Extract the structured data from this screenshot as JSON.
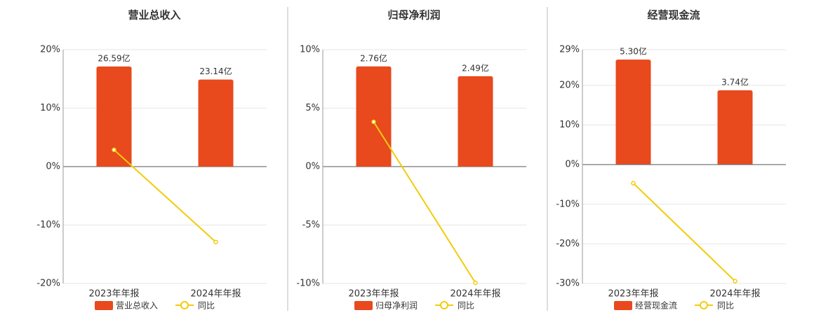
{
  "chart_data": [
    {
      "type": "bar",
      "title": "营业总收入",
      "categories": [
        "2023年年报",
        "2024年年报"
      ],
      "ylim": [
        -20,
        20
      ],
      "yticks": [
        {
          "value": -20,
          "label": "-20%"
        },
        {
          "value": -10,
          "label": "-10%"
        },
        {
          "value": 0,
          "label": "0%"
        },
        {
          "value": 10,
          "label": "10%"
        },
        {
          "value": 20,
          "label": "20%"
        }
      ],
      "y2lim": [
        -31.06,
        31.06
      ],
      "grid": true,
      "series": [
        {
          "name": "营业总收入",
          "color": "#e8491d",
          "axis": "y2",
          "values": [
            26.59,
            23.14
          ],
          "value_labels": [
            "26.59亿",
            "23.14亿"
          ]
        },
        {
          "name": "同比",
          "color": "#f2cc0c",
          "type": "line",
          "values": [
            2.87,
            -12.9
          ]
        }
      ]
    },
    {
      "type": "bar",
      "title": "归母净利润",
      "categories": [
        "2023年年报",
        "2024年年报"
      ],
      "ylim": [
        -10,
        10
      ],
      "yticks": [
        {
          "value": -10,
          "label": "-10%"
        },
        {
          "value": -5,
          "label": "-5%"
        },
        {
          "value": 0,
          "label": "0%"
        },
        {
          "value": 5,
          "label": "5%"
        },
        {
          "value": 10,
          "label": "10%"
        }
      ],
      "y2lim": [
        -3.22,
        3.22
      ],
      "grid": true,
      "series": [
        {
          "name": "归母净利润",
          "color": "#e8491d",
          "axis": "y2",
          "values": [
            2.76,
            2.49
          ],
          "value_labels": [
            "2.76亿",
            "2.49亿"
          ]
        },
        {
          "name": "同比",
          "color": "#f2cc0c",
          "type": "line",
          "values": [
            3.83,
            -9.94
          ]
        }
      ]
    },
    {
      "type": "bar",
      "title": "经营现金流",
      "categories": [
        "2023年年报",
        "2024年年报"
      ],
      "ylim": [
        -30,
        29
      ],
      "yticks": [
        {
          "value": -30,
          "label": "-30%"
        },
        {
          "value": -20,
          "label": "-20%"
        },
        {
          "value": -10,
          "label": "-10%"
        },
        {
          "value": 0,
          "label": "0%"
        },
        {
          "value": 10,
          "label": "10%"
        },
        {
          "value": 20,
          "label": "20%"
        },
        {
          "value": 29,
          "label": "29%"
        }
      ],
      "y2lim": [
        -6.05,
        5.8
      ],
      "grid": true,
      "series": [
        {
          "name": "经营现金流",
          "color": "#e8491d",
          "axis": "y2",
          "values": [
            5.3,
            3.74
          ],
          "value_labels": [
            "5.30亿",
            "3.74亿"
          ]
        },
        {
          "name": "同比",
          "color": "#f2cc0c",
          "type": "line",
          "values": [
            -4.7,
            -29.4
          ]
        }
      ]
    }
  ]
}
